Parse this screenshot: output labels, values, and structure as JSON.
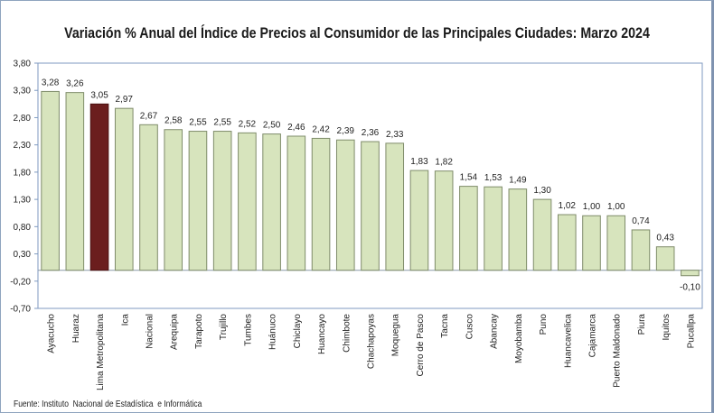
{
  "chart_data": {
    "type": "bar",
    "title": "Variación % Anual del Índice de Precios al Consumidor de las Principales  Ciudades: Marzo 2024",
    "xlabel": "",
    "ylabel": "",
    "ylim": [
      -0.7,
      3.8
    ],
    "yticks": [
      "3,80",
      "3,30",
      "2,80",
      "2,30",
      "1,80",
      "1,30",
      "0,80",
      "0,30",
      "-0,20",
      "-0,70"
    ],
    "ytick_values": [
      3.8,
      3.3,
      2.8,
      2.3,
      1.8,
      1.3,
      0.8,
      0.3,
      -0.2,
      -0.7
    ],
    "grid": false,
    "legend": "none",
    "categories": [
      "Ayacucho",
      "Huaraz",
      "Lima Metropolitana",
      "Ica",
      "Nacional",
      "Arequipa",
      "Tarapoto",
      "Trujillo",
      "Tumbes",
      "Huánuco",
      "Chiclayo",
      "Huancayo",
      "Chimbote",
      "Chachapoyas",
      "Moquegua",
      "Cerro de Pasco",
      "Tacna",
      "Cusco",
      "Abancay",
      "Moyobamba",
      "Puno",
      "Huancavelica",
      "Cajamarca",
      "Puerto Maldonado",
      "Piura",
      "Iquitos",
      "Pucallpa"
    ],
    "values": [
      3.28,
      3.26,
      3.05,
      2.97,
      2.67,
      2.58,
      2.55,
      2.55,
      2.52,
      2.5,
      2.46,
      2.42,
      2.39,
      2.36,
      2.33,
      1.83,
      1.82,
      1.54,
      1.53,
      1.49,
      1.3,
      1.02,
      1.0,
      1.0,
      0.74,
      0.43,
      -0.1
    ],
    "value_labels": [
      "3,28",
      "3,26",
      "3,05",
      "2,97",
      "2,67",
      "2,58",
      "2,55",
      "2,55",
      "2,52",
      "2,50",
      "2,46",
      "2,42",
      "2,39",
      "2,36",
      "2,33",
      "1,83",
      "1,82",
      "1,54",
      "1,53",
      "1,49",
      "1,30",
      "1,02",
      "1,00",
      "1,00",
      "0,74",
      "0,43",
      "-0,10"
    ],
    "highlight_category": "Lima Metropolitana",
    "colors": {
      "bar": "#d7e4bd",
      "bar_border": "#7f8c6a",
      "highlight": "#6b1e1e",
      "highlight_border": "#4a1010",
      "axis": "#7f9ac0"
    }
  },
  "source": "Fuente: Instituto  Nacional de Estadística  e Informática"
}
